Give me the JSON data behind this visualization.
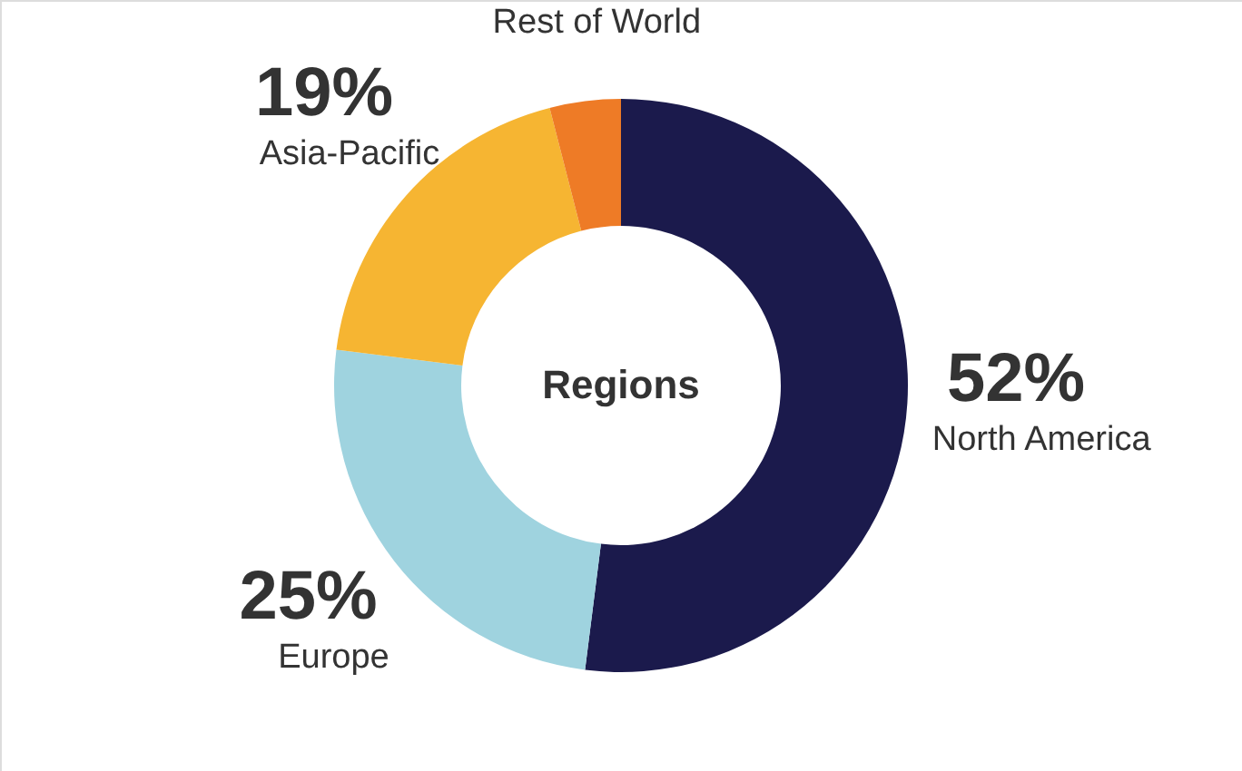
{
  "chart_data": {
    "type": "donut",
    "title": "Regions",
    "categories": [
      "North America",
      "Europe",
      "Asia-Pacific",
      "Rest of World"
    ],
    "values": [
      52,
      25,
      19,
      4
    ],
    "value_labels": [
      "52%",
      "25%",
      "19%",
      null
    ],
    "colors": [
      "#1b1a4c",
      "#9fd3df",
      "#f6b532",
      "#ee7b26"
    ]
  }
}
